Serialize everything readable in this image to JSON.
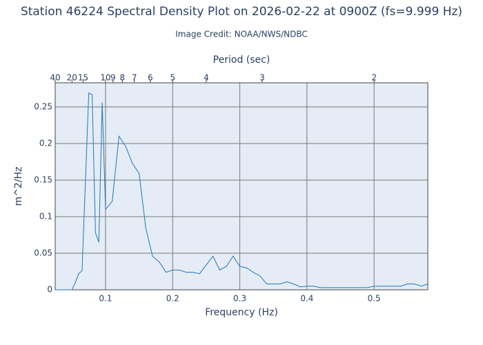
{
  "chart_data": {
    "type": "line",
    "title": "Station 46224 Spectral Density Plot  on 2026-02-22 at 0900Z (fs=9.999 Hz)",
    "subtitle": "Image Credit: NOAA/NWS/NDBC",
    "xlabel": "Frequency (Hz)",
    "ylabel": "m^2/Hz",
    "x2label": "Period (sec)",
    "color": "#1f77b4",
    "grid": true,
    "xlim": [
      0.025,
      0.58
    ],
    "ylim": [
      0,
      0.283
    ],
    "xticks": [
      0.1,
      0.2,
      0.3,
      0.4,
      0.5
    ],
    "yticks": [
      0,
      0.05,
      0.1,
      0.15,
      0.2,
      0.25
    ],
    "x2ticks": [
      {
        "value": 0.025,
        "label": "40"
      },
      {
        "value": 0.05,
        "label": "20"
      },
      {
        "value": 0.0667,
        "label": "15"
      },
      {
        "value": 0.1,
        "label": "10"
      },
      {
        "value": 0.1111,
        "label": "9"
      },
      {
        "value": 0.125,
        "label": "8"
      },
      {
        "value": 0.1429,
        "label": "7"
      },
      {
        "value": 0.1667,
        "label": "6"
      },
      {
        "value": 0.2,
        "label": "5"
      },
      {
        "value": 0.25,
        "label": "4"
      },
      {
        "value": 0.3333,
        "label": "3"
      },
      {
        "value": 0.5,
        "label": "2"
      }
    ],
    "x": [
      0.025,
      0.05,
      0.055,
      0.06,
      0.065,
      0.075,
      0.08,
      0.085,
      0.09,
      0.095,
      0.1,
      0.11,
      0.12,
      0.13,
      0.14,
      0.15,
      0.16,
      0.17,
      0.18,
      0.19,
      0.2,
      0.21,
      0.22,
      0.23,
      0.24,
      0.25,
      0.26,
      0.27,
      0.28,
      0.29,
      0.3,
      0.31,
      0.32,
      0.33,
      0.34,
      0.35,
      0.36,
      0.37,
      0.38,
      0.39,
      0.4,
      0.41,
      0.42,
      0.43,
      0.44,
      0.45,
      0.46,
      0.47,
      0.48,
      0.49,
      0.5,
      0.51,
      0.52,
      0.53,
      0.54,
      0.55,
      0.56,
      0.57,
      0.58
    ],
    "values": [
      0,
      0,
      0.01,
      0.022,
      0.026,
      0.269,
      0.267,
      0.078,
      0.065,
      0.256,
      0.11,
      0.121,
      0.21,
      0.196,
      0.173,
      0.159,
      0.084,
      0.046,
      0.038,
      0.024,
      0.027,
      0.027,
      0.024,
      0.024,
      0.022,
      0.034,
      0.046,
      0.027,
      0.032,
      0.046,
      0.032,
      0.03,
      0.024,
      0.019,
      0.008,
      0.008,
      0.008,
      0.011,
      0.008,
      0.004,
      0.005,
      0.005,
      0.003,
      0.003,
      0.003,
      0.003,
      0.003,
      0.003,
      0.003,
      0.003,
      0.005,
      0.005,
      0.005,
      0.005,
      0.005,
      0.008,
      0.008,
      0.005,
      0.008
    ]
  }
}
